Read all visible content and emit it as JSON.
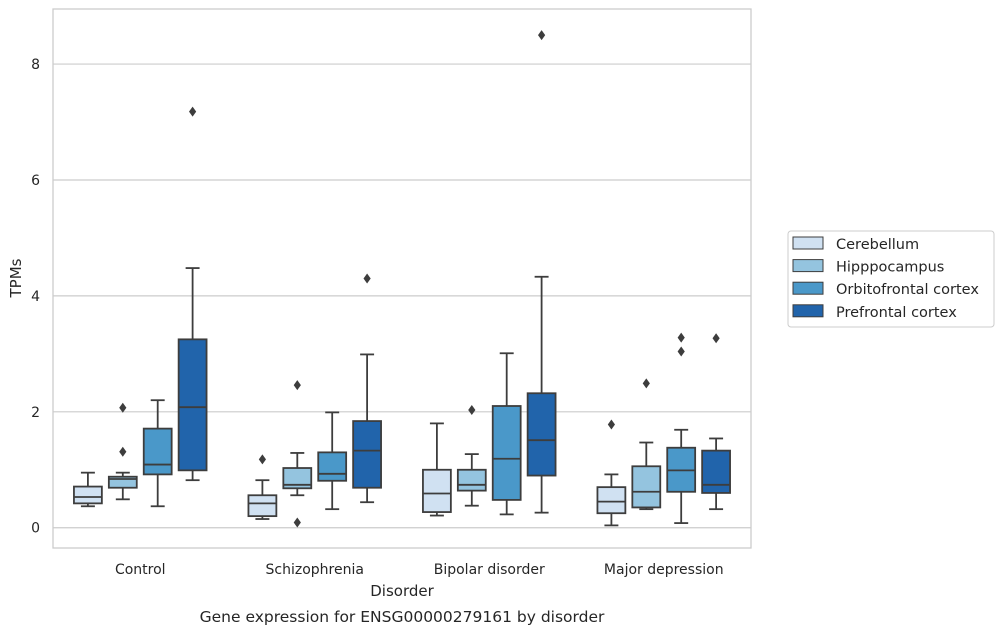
{
  "caption": "Gene expression for ENSG00000279161 by disorder",
  "chart_data": {
    "type": "box",
    "xlabel": "Disorder",
    "ylabel": "TPMs",
    "ylim": [
      -0.35,
      8.95
    ],
    "yticks": [
      0,
      2,
      4,
      6,
      8
    ],
    "categories": [
      "Control",
      "Schizophrenia",
      "Bipolar disorder",
      "Major depression"
    ],
    "grid": "horizontal",
    "legend_position": "right",
    "series": [
      {
        "name": "Cerebellum",
        "color": "#d0e1f2",
        "boxes": [
          {
            "whislo": 0.37,
            "q1": 0.42,
            "med": 0.53,
            "q3": 0.71,
            "whishi": 0.95,
            "fliers": []
          },
          {
            "whislo": 0.15,
            "q1": 0.2,
            "med": 0.42,
            "q3": 0.56,
            "whishi": 0.82,
            "fliers": [
              1.18
            ]
          },
          {
            "whislo": 0.21,
            "q1": 0.27,
            "med": 0.59,
            "q3": 1.0,
            "whishi": 1.8,
            "fliers": []
          },
          {
            "whislo": 0.04,
            "q1": 0.25,
            "med": 0.45,
            "q3": 0.7,
            "whishi": 0.92,
            "fliers": [
              1.78
            ]
          }
        ]
      },
      {
        "name": "Hipppocampus",
        "color": "#94c4df",
        "boxes": [
          {
            "whislo": 0.49,
            "q1": 0.69,
            "med": 0.84,
            "q3": 0.88,
            "whishi": 0.95,
            "fliers": [
              2.07,
              1.31
            ]
          },
          {
            "whislo": 0.56,
            "q1": 0.68,
            "med": 0.74,
            "q3": 1.03,
            "whishi": 1.29,
            "fliers": [
              2.46,
              0.09
            ]
          },
          {
            "whislo": 0.38,
            "q1": 0.64,
            "med": 0.74,
            "q3": 1.0,
            "whishi": 1.27,
            "fliers": [
              2.03
            ]
          },
          {
            "whislo": 0.32,
            "q1": 0.35,
            "med": 0.62,
            "q3": 1.06,
            "whishi": 1.47,
            "fliers": [
              2.49
            ]
          }
        ]
      },
      {
        "name": "Orbitofrontal cortex",
        "color": "#4a98c9",
        "boxes": [
          {
            "whislo": 0.37,
            "q1": 0.92,
            "med": 1.09,
            "q3": 1.71,
            "whishi": 2.2,
            "fliers": []
          },
          {
            "whislo": 0.32,
            "q1": 0.81,
            "med": 0.93,
            "q3": 1.3,
            "whishi": 1.99,
            "fliers": []
          },
          {
            "whislo": 0.23,
            "q1": 0.48,
            "med": 1.19,
            "q3": 2.1,
            "whishi": 3.01,
            "fliers": []
          },
          {
            "whislo": 0.08,
            "q1": 0.62,
            "med": 0.99,
            "q3": 1.38,
            "whishi": 1.69,
            "fliers": [
              3.28,
              3.04
            ]
          }
        ]
      },
      {
        "name": "Prefrontal cortex",
        "color": "#2164ab",
        "boxes": [
          {
            "whislo": 0.82,
            "q1": 0.99,
            "med": 2.08,
            "q3": 3.25,
            "whishi": 4.48,
            "fliers": [
              7.18
            ]
          },
          {
            "whislo": 0.44,
            "q1": 0.69,
            "med": 1.33,
            "q3": 1.84,
            "whishi": 2.99,
            "fliers": [
              4.3
            ]
          },
          {
            "whislo": 0.26,
            "q1": 0.9,
            "med": 1.51,
            "q3": 2.32,
            "whishi": 4.33,
            "fliers": [
              8.5
            ]
          },
          {
            "whislo": 0.32,
            "q1": 0.6,
            "med": 0.74,
            "q3": 1.33,
            "whishi": 1.54,
            "fliers": [
              3.27
            ]
          }
        ]
      }
    ]
  }
}
